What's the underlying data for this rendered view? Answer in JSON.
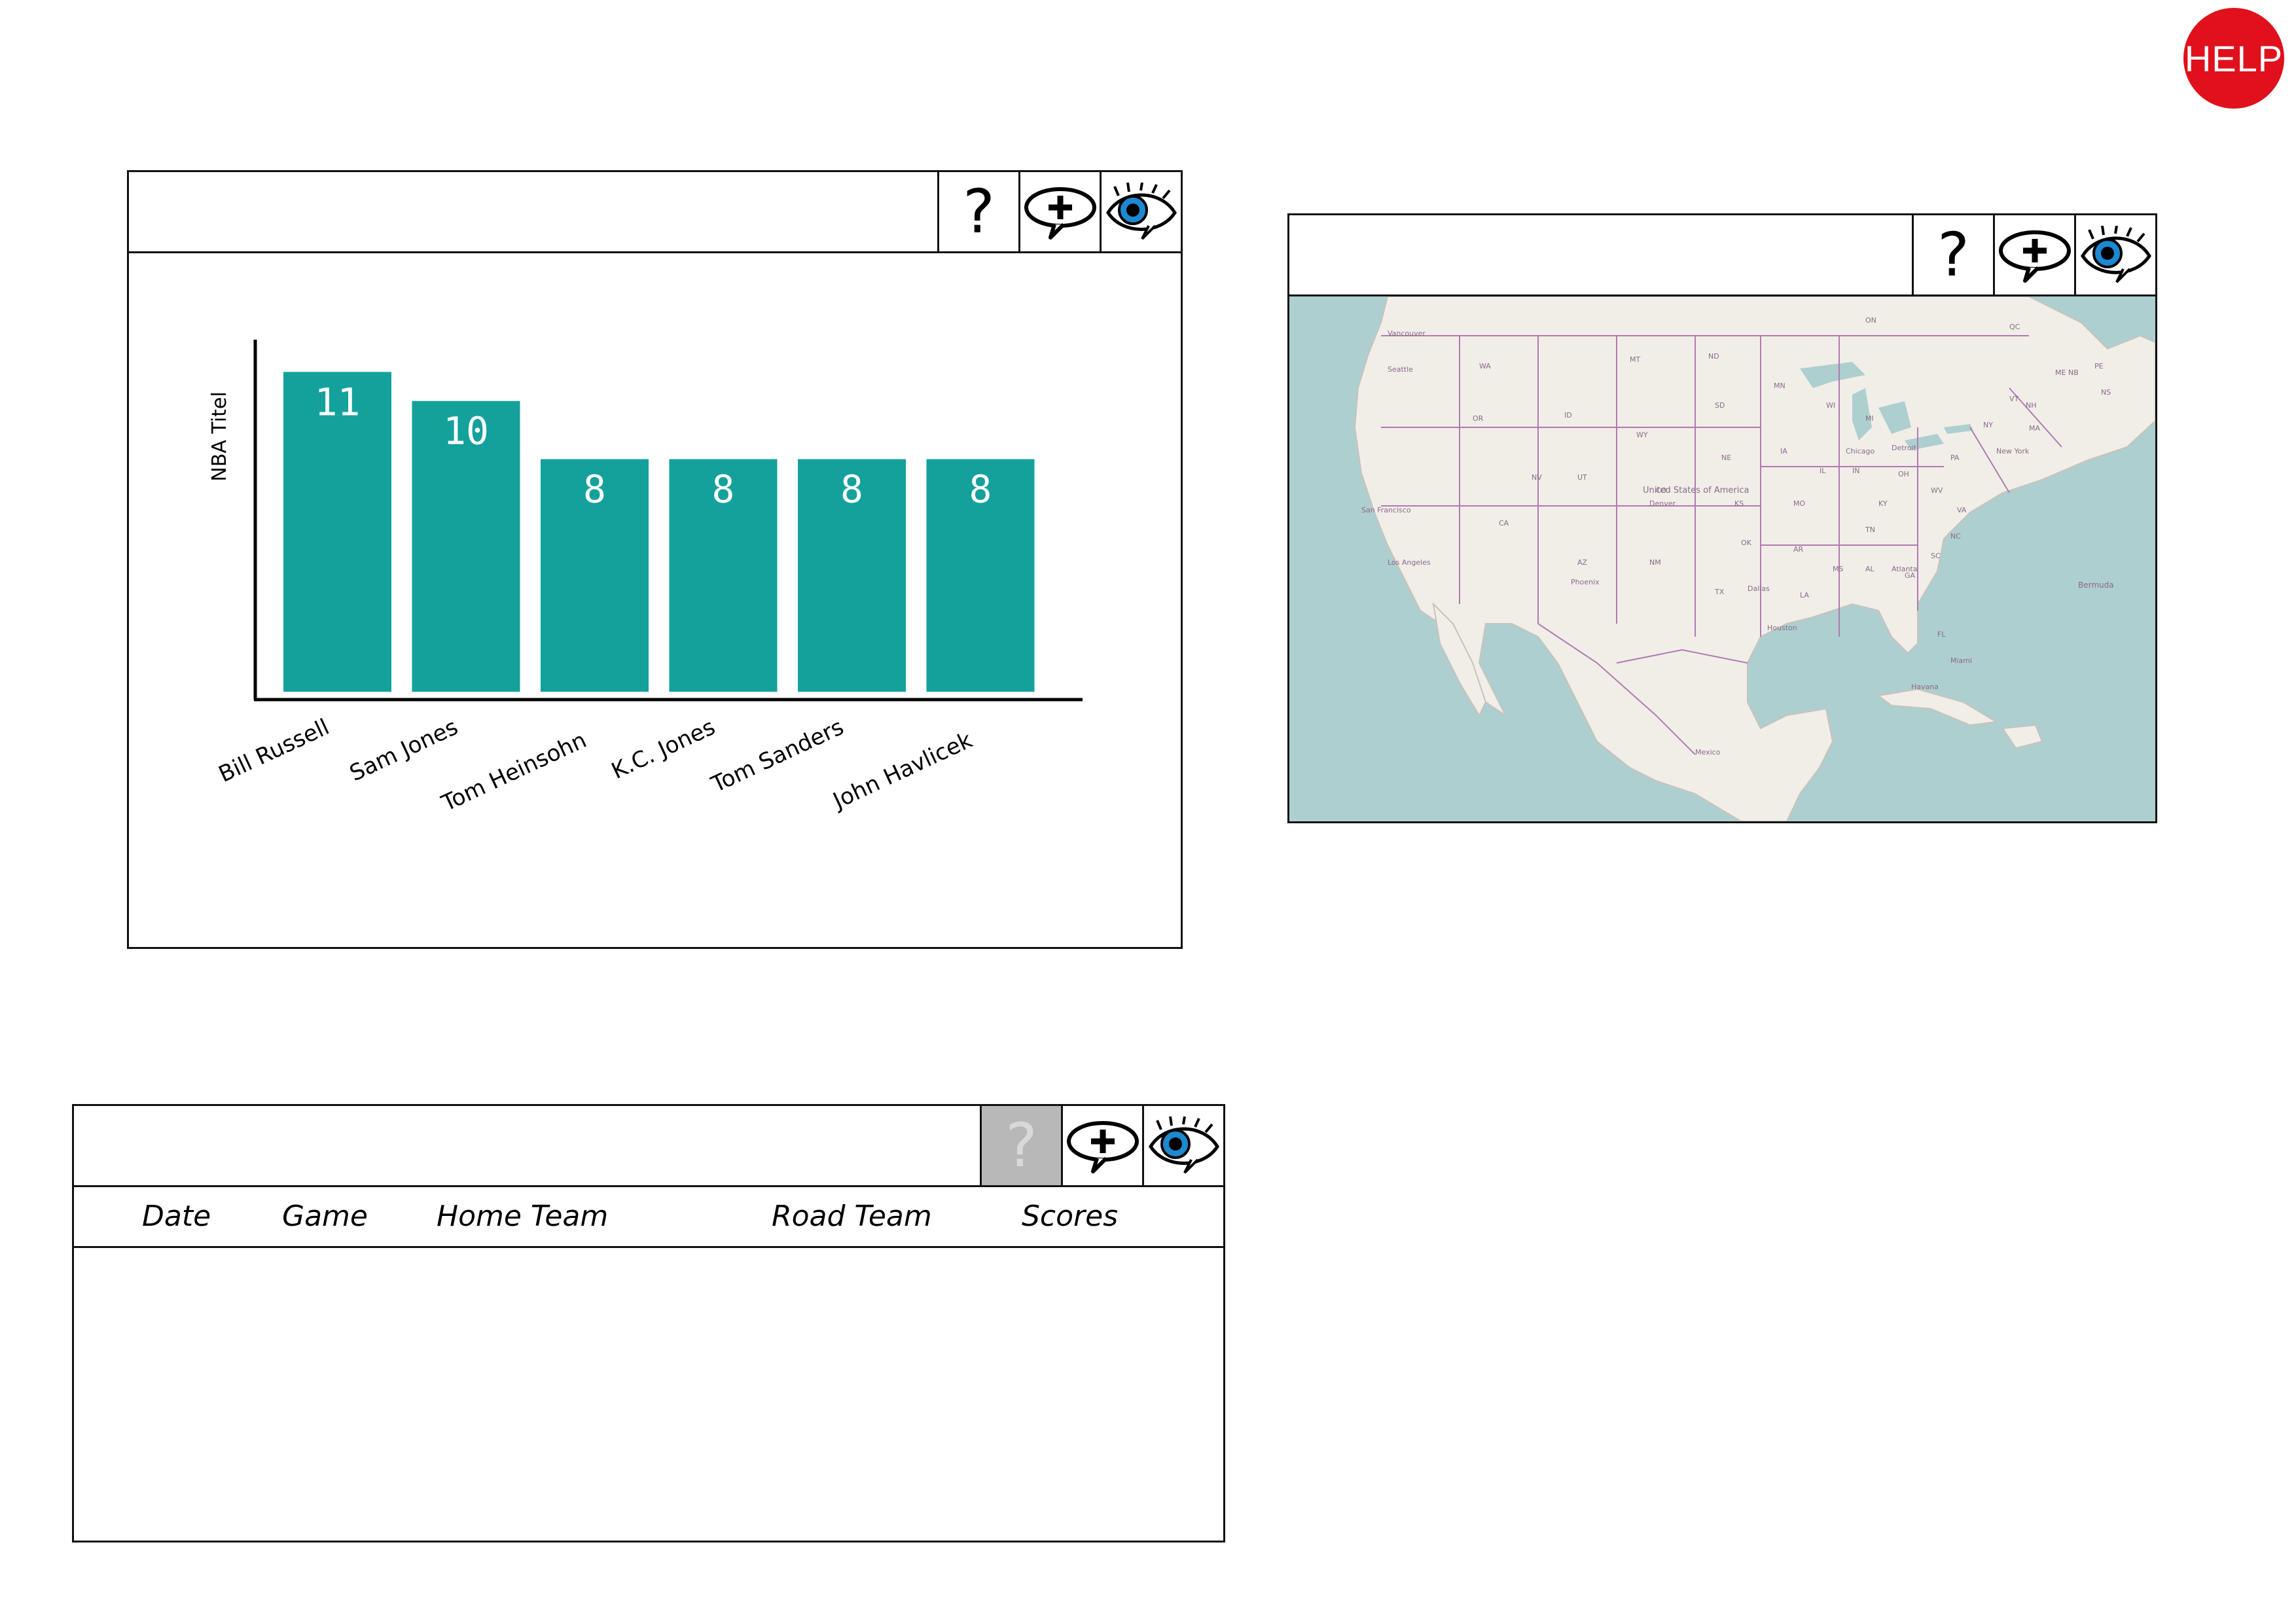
{
  "help": {
    "label": "HELP",
    "color": "#e0101c",
    "text_color": "#ffffff"
  },
  "toolbar": {
    "question_label": "?",
    "add_comment_icon": "speech-bubble-plus-icon",
    "watch_icon": "eye-icon"
  },
  "chart_widget": {
    "title": "",
    "chart_data": {
      "type": "bar",
      "ylabel": "NBA Titel",
      "xlabel": "",
      "categories": [
        "Bill Russell",
        "Sam Jones",
        "Tom Heinsohn",
        "K.C. Jones",
        "Tom Sanders",
        "John Havlicek"
      ],
      "values": [
        11,
        10,
        8,
        8,
        8,
        8
      ],
      "value_labels": [
        "11",
        "10",
        "8",
        "8",
        "8",
        "8"
      ],
      "bar_color": "#14a19c",
      "label_color": "#ffffff",
      "grid": false,
      "legend": "none"
    }
  },
  "map_widget": {
    "title": "",
    "labels": {
      "country": "United States of America",
      "ocean_point": "Bermuda",
      "cities": [
        "Vancouver",
        "Seattle",
        "San Francisco",
        "Los Angeles",
        "Phoenix",
        "Denver",
        "Dallas",
        "Houston",
        "Chicago",
        "Detroit",
        "New York",
        "Atlanta",
        "Miami",
        "Havana",
        "Mexico"
      ],
      "provinces": [
        "ON",
        "QC",
        "NB",
        "NS",
        "PE"
      ],
      "states": [
        "WA",
        "OR",
        "ID",
        "MT",
        "WY",
        "ND",
        "SD",
        "NE",
        "MN",
        "IA",
        "WI",
        "MI",
        "IL",
        "IN",
        "OH",
        "PA",
        "NY",
        "VT",
        "NH",
        "MA",
        "NV",
        "UT",
        "CO",
        "CA",
        "AZ",
        "NM",
        "OK",
        "TX",
        "KS",
        "MO",
        "AR",
        "LA",
        "MS",
        "AL",
        "GA",
        "FL",
        "TN",
        "KY",
        "WV",
        "VA",
        "NC",
        "SC",
        "ME"
      ]
    },
    "colors": {
      "water": "#aecfcf",
      "land": "#f1eee8",
      "border": "#b07ab0"
    }
  },
  "table_widget": {
    "title": "",
    "question_disabled": true,
    "columns": [
      "Date",
      "Game",
      "Home Team",
      "Road Team",
      "Scores"
    ],
    "rows": []
  }
}
